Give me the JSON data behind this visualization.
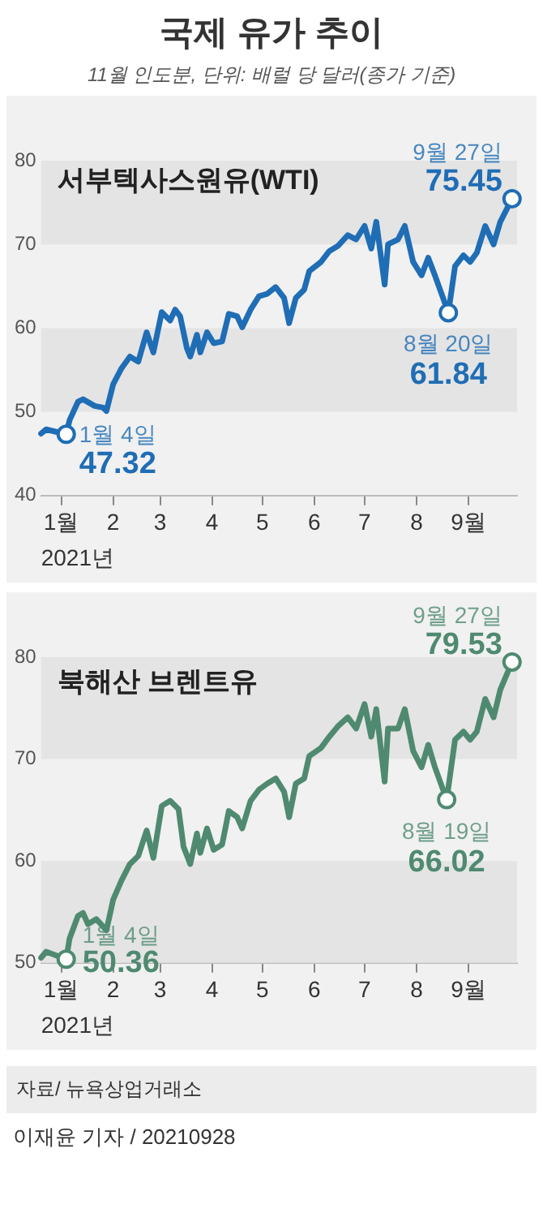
{
  "chart_data": [
    {
      "type": "line",
      "title": "국제 유가 추이",
      "subtitle": "11월 인도분, 단위: 배럴 당 달러(종가 기준)",
      "xlabel": "2021년",
      "xlim": [
        "2020-12-20",
        "2021-09-30"
      ],
      "xticks": [
        {
          "value": "2021-01-01",
          "label": "1월"
        },
        {
          "value": "2021-02-01",
          "label": "2"
        },
        {
          "value": "2021-03-01",
          "label": "3"
        },
        {
          "value": "2021-04-01",
          "label": "4"
        },
        {
          "value": "2021-05-01",
          "label": "5"
        },
        {
          "value": "2021-06-01",
          "label": "6"
        },
        {
          "value": "2021-07-01",
          "label": "7"
        },
        {
          "value": "2021-08-01",
          "label": "8"
        },
        {
          "value": "2021-09-01",
          "label": "9월"
        }
      ],
      "ylim": [
        40,
        80
      ],
      "yticks": [
        40,
        50,
        60,
        70,
        80
      ],
      "bands": [
        {
          "axis": "y",
          "from": 70,
          "to": 80,
          "color": "#e4e4e4"
        },
        {
          "axis": "y",
          "from": 50,
          "to": 60,
          "color": "#e4e4e4"
        }
      ],
      "series": [
        {
          "name": "서부텍사스원유(WTI)",
          "color": "#1f6db5",
          "x": [
            "2020-12-20",
            "2020-12-23",
            "2021-01-04",
            "2021-01-06",
            "2021-01-11",
            "2021-01-14",
            "2021-01-21",
            "2021-01-26",
            "2021-01-28",
            "2021-02-01",
            "2021-02-06",
            "2021-02-11",
            "2021-02-16",
            "2021-02-21",
            "2021-02-25",
            "2021-03-02",
            "2021-03-07",
            "2021-03-10",
            "2021-03-13",
            "2021-03-17",
            "2021-03-19",
            "2021-03-23",
            "2021-03-25",
            "2021-03-29",
            "2021-04-02",
            "2021-04-07",
            "2021-04-11",
            "2021-04-16",
            "2021-04-19",
            "2021-04-24",
            "2021-04-29",
            "2021-05-04",
            "2021-05-09",
            "2021-05-14",
            "2021-05-17",
            "2021-05-21",
            "2021-05-26",
            "2021-05-29",
            "2021-06-05",
            "2021-06-10",
            "2021-06-15",
            "2021-06-21",
            "2021-06-26",
            "2021-07-01",
            "2021-07-05",
            "2021-07-08",
            "2021-07-13",
            "2021-07-15",
            "2021-07-21",
            "2021-07-25",
            "2021-07-30",
            "2021-08-04",
            "2021-08-08",
            "2021-08-12",
            "2021-08-20",
            "2021-08-24",
            "2021-08-29",
            "2021-09-02",
            "2021-09-06",
            "2021-09-11",
            "2021-09-16",
            "2021-09-20",
            "2021-09-27"
          ],
          "values": [
            47.4,
            47.9,
            47.32,
            49.0,
            51.2,
            51.5,
            50.7,
            50.5,
            50.1,
            53.3,
            55.2,
            56.6,
            56.0,
            59.5,
            57.1,
            61.9,
            60.9,
            62.2,
            61.4,
            57.6,
            56.6,
            59.2,
            57.1,
            59.5,
            58.2,
            58.4,
            61.7,
            61.4,
            60.1,
            62.2,
            63.8,
            64.1,
            64.9,
            63.6,
            60.6,
            63.6,
            64.6,
            66.8,
            67.9,
            69.2,
            69.8,
            71.1,
            70.6,
            72.2,
            69.5,
            72.7,
            65.2,
            70.0,
            70.6,
            72.2,
            67.9,
            66.3,
            68.4,
            66.3,
            61.84,
            67.4,
            68.7,
            67.9,
            69.0,
            72.2,
            70.0,
            72.7,
            75.45
          ]
        },
        {
          "type": "scatter",
          "marker": "circle",
          "color": "#1f6db5",
          "x": [
            "2021-01-04",
            "2021-08-20",
            "2021-09-27"
          ],
          "values": [
            47.32,
            61.84,
            75.45
          ]
        }
      ],
      "annotations": [
        {
          "text": "1월 4일",
          "x": "2021-01-04",
          "y": 47.32
        },
        {
          "text": "47.32",
          "x": "2021-01-04",
          "y": 47.32
        },
        {
          "text": "8월 20일",
          "x": "2021-08-20",
          "y": 61.84
        },
        {
          "text": "61.84",
          "x": "2021-08-20",
          "y": 61.84
        },
        {
          "text": "9월 27일",
          "x": "2021-09-27",
          "y": 75.45
        },
        {
          "text": "75.45",
          "x": "2021-09-27",
          "y": 75.45
        }
      ]
    },
    {
      "type": "line",
      "xlabel": "2021년",
      "xlim": [
        "2020-12-20",
        "2021-09-30"
      ],
      "xticks": [
        {
          "value": "2021-01-01",
          "label": "1월"
        },
        {
          "value": "2021-02-01",
          "label": "2"
        },
        {
          "value": "2021-03-01",
          "label": "3"
        },
        {
          "value": "2021-04-01",
          "label": "4"
        },
        {
          "value": "2021-05-01",
          "label": "5"
        },
        {
          "value": "2021-06-01",
          "label": "6"
        },
        {
          "value": "2021-07-01",
          "label": "7"
        },
        {
          "value": "2021-08-01",
          "label": "8"
        },
        {
          "value": "2021-09-01",
          "label": "9월"
        }
      ],
      "ylim": [
        50,
        80
      ],
      "yticks": [
        50,
        60,
        70,
        80
      ],
      "bands": [
        {
          "axis": "y",
          "from": 70,
          "to": 80,
          "color": "#e4e4e4"
        },
        {
          "axis": "y",
          "from": 50,
          "to": 60,
          "color": "#e4e4e4"
        }
      ],
      "series": [
        {
          "name": "북해산 브렌트유",
          "color": "#4f8a70",
          "x": [
            "2020-12-20",
            "2020-12-23",
            "2021-01-04",
            "2021-01-06",
            "2021-01-11",
            "2021-01-14",
            "2021-01-17",
            "2021-01-22",
            "2021-01-28",
            "2021-02-01",
            "2021-02-06",
            "2021-02-11",
            "2021-02-16",
            "2021-02-21",
            "2021-02-25",
            "2021-03-02",
            "2021-03-07",
            "2021-03-12",
            "2021-03-15",
            "2021-03-19",
            "2021-03-23",
            "2021-03-25",
            "2021-03-29",
            "2021-04-02",
            "2021-04-07",
            "2021-04-11",
            "2021-04-16",
            "2021-04-19",
            "2021-04-24",
            "2021-04-29",
            "2021-05-04",
            "2021-05-09",
            "2021-05-14",
            "2021-05-17",
            "2021-05-21",
            "2021-05-26",
            "2021-05-29",
            "2021-06-05",
            "2021-06-10",
            "2021-06-15",
            "2021-06-21",
            "2021-06-26",
            "2021-07-01",
            "2021-07-05",
            "2021-07-08",
            "2021-07-13",
            "2021-07-15",
            "2021-07-21",
            "2021-07-25",
            "2021-07-30",
            "2021-08-04",
            "2021-08-08",
            "2021-08-12",
            "2021-08-19",
            "2021-08-24",
            "2021-08-29",
            "2021-09-02",
            "2021-09-06",
            "2021-09-11",
            "2021-09-16",
            "2021-09-20",
            "2021-09-27"
          ],
          "values": [
            50.5,
            51.1,
            50.36,
            52.4,
            54.6,
            54.9,
            53.8,
            54.3,
            53.2,
            56.2,
            58.1,
            59.7,
            60.5,
            63.0,
            60.3,
            65.4,
            65.9,
            65.1,
            61.4,
            59.7,
            62.7,
            60.8,
            63.2,
            61.1,
            61.6,
            64.9,
            64.3,
            63.2,
            65.9,
            67.0,
            67.6,
            68.1,
            66.8,
            64.3,
            67.6,
            68.1,
            70.3,
            71.1,
            72.2,
            73.2,
            74.1,
            73.0,
            75.4,
            72.2,
            74.9,
            67.8,
            73.0,
            73.0,
            74.9,
            70.8,
            69.2,
            71.4,
            69.2,
            66.02,
            71.9,
            72.7,
            71.9,
            72.7,
            75.9,
            74.1,
            76.8,
            79.53
          ]
        },
        {
          "type": "scatter",
          "marker": "circle",
          "color": "#4f8a70",
          "x": [
            "2021-01-04",
            "2021-08-19",
            "2021-09-27"
          ],
          "values": [
            50.36,
            66.02,
            79.53
          ]
        }
      ],
      "annotations": [
        {
          "text": "1월 4일",
          "x": "2021-01-04",
          "y": 50.36
        },
        {
          "text": "50.36",
          "x": "2021-01-04",
          "y": 50.36
        },
        {
          "text": "8월 19일",
          "x": "2021-08-19",
          "y": 66.02
        },
        {
          "text": "66.02",
          "x": "2021-08-19",
          "y": 66.02
        },
        {
          "text": "9월 27일",
          "x": "2021-09-27",
          "y": 79.53
        },
        {
          "text": "79.53",
          "x": "2021-09-27",
          "y": 79.53
        },
        "자료/ 뉴욕상업거래소",
        "이재윤 기자 / 20210928"
      ]
    }
  ]
}
